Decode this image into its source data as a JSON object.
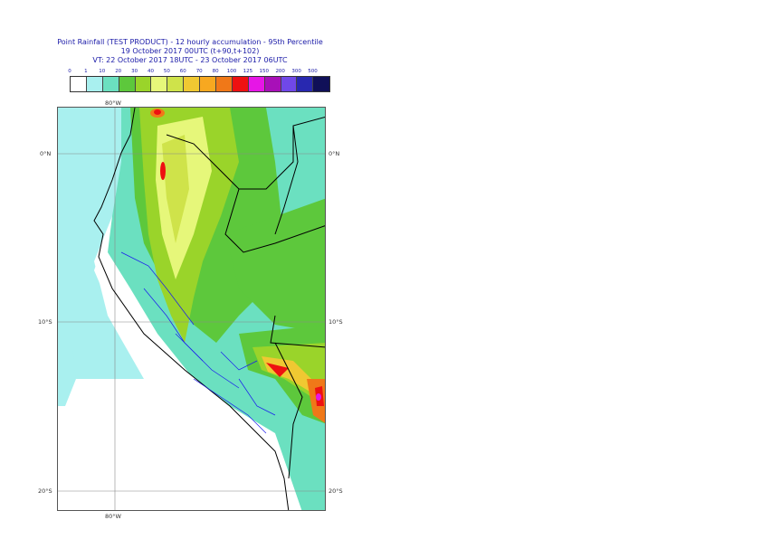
{
  "title": {
    "line1": "Point Rainfall (TEST PRODUCT) - 12 hourly accumulation - 95th Percentile",
    "line2": "19 October 2017 00UTC (t+90,t+102)",
    "line3": "VT: 22 October 2017 18UTC - 23 October 2017 06UTC"
  },
  "scale": {
    "labels": [
      "0",
      "1",
      "10",
      "20",
      "30",
      "40",
      "50",
      "60",
      "70",
      "80",
      "100",
      "125",
      "150",
      "200",
      "300",
      "500"
    ],
    "colors": [
      "#ffffff",
      "#a9f0ef",
      "#6be0c0",
      "#5dc83c",
      "#9ad42a",
      "#e6f77a",
      "#cfe34a",
      "#f0c832",
      "#f7a820",
      "#f07818",
      "#ee1111",
      "#e616e6",
      "#a810b8",
      "#7048e8",
      "#2828b0",
      "#101058"
    ]
  },
  "map": {
    "lat_labels": {
      "eq_left": "0°N",
      "eq_right": "0°N",
      "s10_left": "10°S",
      "s10_right": "10°S",
      "s20_left": "20°S",
      "s20_right": "20°S"
    },
    "lon_labels": {
      "top": "80°W",
      "bottom": "80°W"
    }
  }
}
